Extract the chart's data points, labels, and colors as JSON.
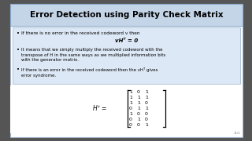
{
  "title": "Error Detection using Parity Check Matrix",
  "title_bg": "#c5d5e8",
  "title_border": "#8aabcc",
  "content_bg": "#dce8f5",
  "content_border": "#aabbd0",
  "outer_bg": "#555555",
  "slide_bg": "#f0f0f0",
  "bullets": [
    "If there is no error in the received codeword v then",
    "It means that we simply multiply the received codeword with the\ntranspose of H in the same ways as we multiplied information bits\nwith the generator matrix.",
    "If there is an error in the received codeword then the vHᵀ gives\nerror syndrome."
  ],
  "formula": "vHᵀ = 0",
  "matrix_label": "Hᵀ =",
  "matrix": [
    [
      1,
      0,
      1
    ],
    [
      1,
      1,
      1
    ],
    [
      1,
      1,
      0
    ],
    [
      0,
      1,
      1
    ],
    [
      1,
      0,
      0
    ],
    [
      0,
      1,
      0
    ],
    [
      0,
      0,
      1
    ]
  ],
  "slide_number": "11/1"
}
